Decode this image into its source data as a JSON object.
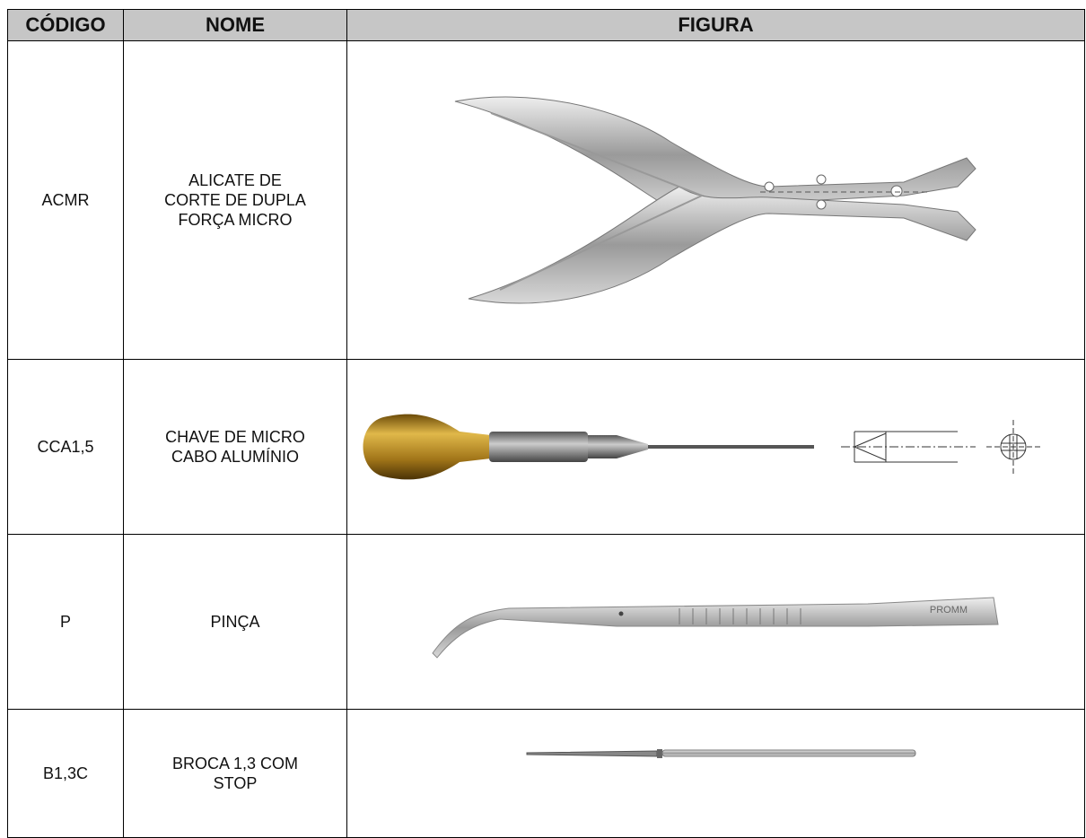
{
  "table": {
    "headers": [
      "CÓDIGO",
      "NOME",
      "FIGURA"
    ],
    "rows": [
      [
        "ACMR",
        "ALICATE DE\nCORTE DE DUPLA\nFORÇA MICRO"
      ],
      [
        "CCA1,5",
        "CHAVE DE MICRO\nCABO ALUMÍNIO"
      ],
      [
        "P",
        "PINÇA"
      ],
      [
        "B1,3C",
        "BROCA 1,3 COM\nSTOP"
      ]
    ],
    "figure_text": "PROMM"
  }
}
